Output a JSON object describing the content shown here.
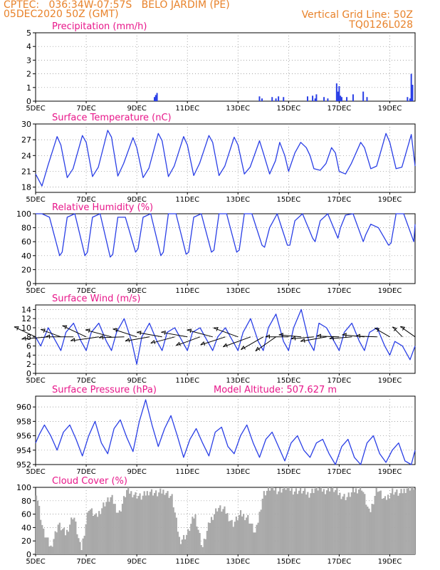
{
  "header": {
    "line1_left": "CPTEC:   036:34W-07:57S   BELO JARDIM (PE)",
    "line2_left": "05DEC2020 50Z (GMT)",
    "line1_right": "Vertical Grid Line: 50Z",
    "line2_right": "TQ0126L028"
  },
  "colors": {
    "line": "#2a3fe6",
    "bar": "#2a3fe6",
    "cloud": "#a9a9a9",
    "title": "#e8178a",
    "header": "#e8822a"
  },
  "xaxis": {
    "ticks": [
      "5DEC",
      "7DEC",
      "9DEC",
      "11DEC",
      "13DEC",
      "15DEC",
      "17DEC",
      "19DEC"
    ],
    "tick_days": [
      5,
      7,
      9,
      11,
      13,
      15,
      17,
      19
    ],
    "range_days": [
      5,
      20
    ]
  },
  "chart_data": [
    {
      "type": "bar",
      "id": "precip",
      "title": "Precipitation (mm/h)",
      "ylim": [
        0,
        5
      ],
      "yticks": [
        0,
        1,
        2,
        3,
        4,
        5
      ],
      "grid": true,
      "x": [
        9.7,
        9.75,
        9.8,
        13.85,
        13.95,
        14.35,
        14.5,
        14.6,
        14.8,
        15.75,
        15.95,
        16.05,
        16.1,
        16.4,
        16.55,
        16.9,
        16.95,
        17.0,
        17.05,
        17.1,
        17.3,
        17.55,
        17.95,
        18.1,
        19.7,
        19.8,
        19.85,
        19.9
      ],
      "values": [
        0.3,
        0.45,
        0.6,
        0.35,
        0.2,
        0.3,
        0.2,
        0.35,
        0.3,
        0.35,
        0.4,
        0.2,
        0.5,
        0.3,
        0.2,
        1.3,
        0.7,
        1.1,
        0.4,
        0.3,
        0.3,
        0.5,
        0.7,
        0.3,
        0.3,
        0.2,
        2.0,
        1.2
      ]
    },
    {
      "type": "line",
      "id": "temp",
      "title": "Surface Temperature (nC)",
      "ylim": [
        17,
        30
      ],
      "yticks": [
        18,
        21,
        24,
        27,
        30
      ],
      "grid": true,
      "x": [
        5.0,
        5.25,
        5.48,
        5.85,
        6.0,
        6.25,
        6.48,
        6.85,
        7.0,
        7.25,
        7.48,
        7.85,
        8.0,
        8.25,
        8.48,
        8.85,
        9.0,
        9.25,
        9.48,
        9.85,
        10.0,
        10.25,
        10.48,
        10.85,
        11.0,
        11.25,
        11.48,
        11.85,
        12.0,
        12.25,
        12.48,
        12.85,
        13.0,
        13.25,
        13.48,
        13.85,
        14.0,
        14.25,
        14.48,
        14.65,
        14.85,
        15.0,
        15.25,
        15.48,
        15.7,
        15.85,
        16.0,
        16.25,
        16.48,
        16.7,
        16.85,
        17.0,
        17.25,
        17.48,
        17.85,
        18.0,
        18.25,
        18.48,
        18.85,
        19.0,
        19.25,
        19.48,
        19.85,
        20.0
      ],
      "values": [
        20.5,
        18.2,
        22.0,
        27.6,
        26.0,
        19.8,
        21.5,
        27.8,
        26.5,
        20.0,
        21.8,
        28.8,
        27.5,
        20.1,
        22.5,
        27.4,
        25.5,
        19.8,
        21.6,
        28.2,
        26.8,
        20.0,
        22.0,
        27.6,
        26.0,
        20.2,
        22.5,
        27.8,
        26.5,
        20.2,
        22.0,
        27.5,
        26.0,
        20.5,
        21.8,
        26.8,
        24.5,
        20.5,
        23.0,
        26.5,
        24.0,
        21.0,
        24.5,
        26.5,
        25.5,
        24.0,
        21.5,
        21.2,
        22.5,
        25.5,
        24.5,
        21.0,
        20.5,
        22.5,
        26.5,
        25.5,
        21.5,
        22.0,
        28.2,
        26.5,
        21.5,
        21.8,
        28.0,
        22.0
      ]
    },
    {
      "type": "line",
      "id": "rh",
      "title": "Relative Humidity (%)",
      "ylim": [
        0,
        100
      ],
      "yticks": [
        0,
        20,
        40,
        60,
        80,
        100
      ],
      "grid": true,
      "x": [
        5.0,
        5.25,
        5.55,
        5.95,
        6.05,
        6.25,
        6.55,
        6.95,
        7.05,
        7.25,
        7.55,
        7.95,
        8.05,
        8.25,
        8.55,
        8.95,
        9.05,
        9.25,
        9.55,
        9.95,
        10.05,
        10.25,
        10.55,
        10.95,
        11.05,
        11.25,
        11.55,
        11.95,
        12.05,
        12.25,
        12.55,
        12.95,
        13.05,
        13.25,
        13.55,
        13.95,
        14.05,
        14.25,
        14.55,
        14.95,
        15.05,
        15.25,
        15.55,
        15.95,
        16.05,
        16.25,
        16.55,
        16.95,
        17.05,
        17.25,
        17.55,
        17.95,
        18.05,
        18.25,
        18.55,
        18.95,
        19.05,
        19.25,
        19.55,
        19.95,
        20.0
      ],
      "values": [
        100,
        100,
        95,
        40,
        45,
        95,
        100,
        40,
        45,
        95,
        100,
        38,
        42,
        95,
        95,
        45,
        50,
        95,
        100,
        40,
        45,
        100,
        100,
        42,
        45,
        95,
        100,
        45,
        48,
        100,
        100,
        45,
        48,
        100,
        100,
        55,
        52,
        80,
        100,
        55,
        55,
        90,
        100,
        65,
        60,
        90,
        100,
        65,
        80,
        98,
        100,
        60,
        70,
        85,
        80,
        55,
        58,
        100,
        100,
        60,
        85
      ]
    },
    {
      "type": "line",
      "id": "wind",
      "title": "Surface Wind (m/s)",
      "ylim": [
        0,
        15
      ],
      "yticks": [
        0,
        2,
        4,
        6,
        8,
        10,
        12,
        14
      ],
      "grid": true,
      "x": [
        5.0,
        5.2,
        5.5,
        5.8,
        6.0,
        6.2,
        6.5,
        6.8,
        7.0,
        7.2,
        7.5,
        7.8,
        8.0,
        8.2,
        8.5,
        8.8,
        9.0,
        9.2,
        9.5,
        9.8,
        10.0,
        10.2,
        10.5,
        10.8,
        11.0,
        11.2,
        11.5,
        11.8,
        12.0,
        12.2,
        12.5,
        12.8,
        13.0,
        13.2,
        13.5,
        13.8,
        14.0,
        14.2,
        14.5,
        14.8,
        15.0,
        15.2,
        15.5,
        15.8,
        16.0,
        16.2,
        16.5,
        16.8,
        17.0,
        17.2,
        17.5,
        17.8,
        18.0,
        18.2,
        18.5,
        18.8,
        19.0,
        19.2,
        19.5,
        19.8,
        20.0
      ],
      "values": [
        8,
        6,
        10,
        7,
        5,
        9,
        11,
        7,
        5,
        9,
        11,
        7,
        5,
        9,
        12,
        7,
        2,
        8,
        11,
        7,
        5,
        9,
        10,
        7,
        5,
        9,
        10,
        7,
        5,
        8,
        10,
        7,
        5,
        9,
        12,
        7,
        5,
        10,
        13,
        7,
        5,
        10,
        14,
        7,
        5,
        11,
        10,
        7,
        5,
        9,
        11,
        7,
        5,
        9,
        10,
        6,
        4,
        7,
        6,
        3,
        6
      ],
      "vectors": [
        {
          "x": 5.0,
          "speed": 7.9,
          "dir": 115
        },
        {
          "x": 5.5,
          "speed": 8.9,
          "dir": 85
        },
        {
          "x": 6.0,
          "speed": 7.2,
          "dir": 110
        },
        {
          "x": 6.5,
          "speed": 9.3,
          "dir": 90
        },
        {
          "x": 7.0,
          "speed": 8.8,
          "dir": 115
        },
        {
          "x": 7.5,
          "speed": 9.5,
          "dir": 82
        },
        {
          "x": 8.0,
          "speed": 9.0,
          "dir": 105
        },
        {
          "x": 8.5,
          "speed": 8.4,
          "dir": 88
        },
        {
          "x": 9.0,
          "speed": 8.4,
          "dir": 108
        },
        {
          "x": 9.5,
          "speed": 8.2,
          "dir": 80
        },
        {
          "x": 10.0,
          "speed": 8.6,
          "dir": 100
        },
        {
          "x": 10.5,
          "speed": 8.3,
          "dir": 75
        },
        {
          "x": 11.0,
          "speed": 8.9,
          "dir": 100
        },
        {
          "x": 11.5,
          "speed": 8.5,
          "dir": 70
        },
        {
          "x": 12.0,
          "speed": 8.9,
          "dir": 105
        },
        {
          "x": 12.5,
          "speed": 8.7,
          "dir": 72
        },
        {
          "x": 13.0,
          "speed": 8.7,
          "dir": 110
        },
        {
          "x": 13.5,
          "speed": 9.8,
          "dir": 70
        },
        {
          "x": 14.0,
          "speed": 8.6,
          "dir": 60
        },
        {
          "x": 14.5,
          "speed": 8.3,
          "dir": 55
        },
        {
          "x": 15.0,
          "speed": 7.7,
          "dir": 90
        },
        {
          "x": 15.5,
          "speed": 7.5,
          "dir": 95
        },
        {
          "x": 16.0,
          "speed": 7.6,
          "dir": 85
        },
        {
          "x": 16.5,
          "speed": 8.8,
          "dir": 80
        },
        {
          "x": 17.0,
          "speed": 7.5,
          "dir": 92
        },
        {
          "x": 17.5,
          "speed": 7.5,
          "dir": 85
        },
        {
          "x": 18.0,
          "speed": 7.5,
          "dir": 95
        },
        {
          "x": 18.5,
          "speed": 7.1,
          "dir": 92
        },
        {
          "x": 19.0,
          "speed": 5.8,
          "dir": 120
        },
        {
          "x": 19.5,
          "speed": 4.7,
          "dir": 135
        },
        {
          "x": 20.0,
          "speed": 6.0,
          "dir": 125
        }
      ]
    },
    {
      "type": "line",
      "id": "press",
      "title": "Surface Pressure (hPa)",
      "annotation": "Model Altitude: 507.627 m",
      "ylim": [
        952,
        961.5
      ],
      "yticks": [
        952,
        954,
        956,
        958,
        960
      ],
      "grid": true,
      "x": [
        5.0,
        5.15,
        5.35,
        5.6,
        5.85,
        6.1,
        6.35,
        6.6,
        6.85,
        7.1,
        7.35,
        7.6,
        7.85,
        8.1,
        8.35,
        8.6,
        8.85,
        9.1,
        9.35,
        9.6,
        9.85,
        10.1,
        10.35,
        10.6,
        10.85,
        11.1,
        11.35,
        11.6,
        11.85,
        12.1,
        12.35,
        12.6,
        12.85,
        13.1,
        13.35,
        13.6,
        13.85,
        14.1,
        14.35,
        14.6,
        14.85,
        15.1,
        15.35,
        15.6,
        15.85,
        16.1,
        16.35,
        16.6,
        16.85,
        17.1,
        17.35,
        17.6,
        17.85,
        18.1,
        18.35,
        18.6,
        18.85,
        19.1,
        19.35,
        19.6,
        19.85,
        20.0
      ],
      "values": [
        955.0,
        956.2,
        957.5,
        956.0,
        954.0,
        956.5,
        957.5,
        955.5,
        953.2,
        956.0,
        958.0,
        955.0,
        953.5,
        957.0,
        958.2,
        955.8,
        953.8,
        958.0,
        961.0,
        957.5,
        954.5,
        957.0,
        958.8,
        956.0,
        953.0,
        955.5,
        957.0,
        955.0,
        953.2,
        956.5,
        957.2,
        954.5,
        953.5,
        956.0,
        957.5,
        955.0,
        953.0,
        955.5,
        956.5,
        954.5,
        952.5,
        955.0,
        956.0,
        954.0,
        953.0,
        955.0,
        955.5,
        953.5,
        952.0,
        954.5,
        955.5,
        953.0,
        952.0,
        955.0,
        956.0,
        953.5,
        952.3,
        954.0,
        955.0,
        952.5,
        952.0,
        954.0
      ]
    },
    {
      "type": "area",
      "id": "cloud",
      "title": "Cloud Cover (%)",
      "ylim": [
        0,
        100
      ],
      "yticks": [
        0,
        20,
        40,
        60,
        80,
        100
      ],
      "grid": true,
      "x": [
        5.0,
        5.3,
        5.6,
        5.9,
        6.2,
        6.5,
        6.8,
        7.1,
        7.4,
        7.7,
        8.0,
        8.3,
        8.6,
        8.9,
        9.2,
        9.5,
        9.8,
        10.1,
        10.4,
        10.7,
        11.0,
        11.3,
        11.6,
        11.9,
        12.2,
        12.5,
        12.8,
        13.1,
        13.4,
        13.7,
        14.0,
        14.3,
        14.6,
        14.9,
        15.2,
        15.5,
        15.8,
        16.1,
        16.4,
        16.7,
        17.0,
        17.3,
        17.6,
        17.9,
        18.2,
        18.5,
        18.8,
        19.1,
        19.4,
        19.7,
        20.0
      ],
      "values": [
        100,
        35,
        10,
        45,
        30,
        60,
        5,
        70,
        55,
        75,
        85,
        60,
        95,
        90,
        85,
        95,
        90,
        95,
        85,
        20,
        30,
        60,
        10,
        50,
        70,
        65,
        45,
        60,
        55,
        30,
        90,
        100,
        95,
        100,
        95,
        95,
        90,
        100,
        95,
        100,
        90,
        85,
        95,
        100,
        60,
        100,
        80,
        95,
        90,
        100,
        100
      ]
    }
  ]
}
